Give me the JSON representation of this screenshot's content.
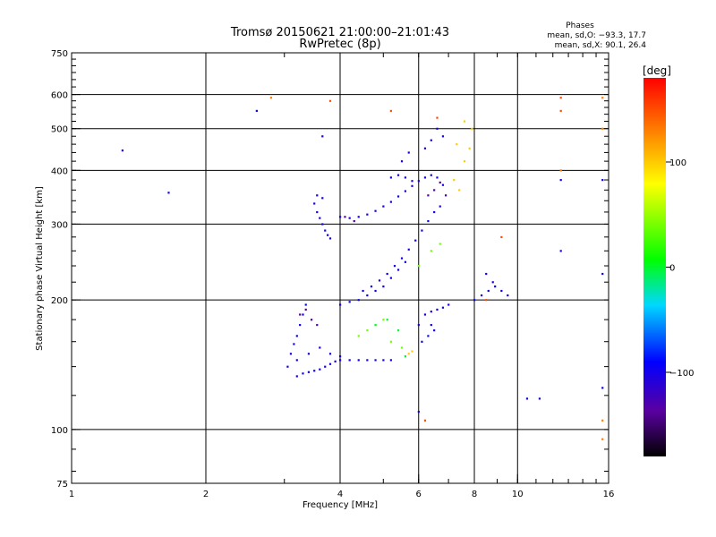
{
  "chart_data": {
    "type": "scatter",
    "title": "Tromsø 20150621 21:00:00–21:01:43",
    "subtitle": "RwPretec (8p)",
    "xlabel": "Frequency [MHz]",
    "ylabel": "Stationary phase Virtual Height [km]",
    "x_scale": "log",
    "y_scale": "log",
    "xlim": [
      1,
      16
    ],
    "ylim": [
      75,
      750
    ],
    "x_ticks": [
      1,
      2,
      4,
      6,
      8,
      10,
      16
    ],
    "y_ticks": [
      75,
      100,
      200,
      300,
      400,
      500,
      600,
      750
    ],
    "x_gridlines": [
      2,
      4,
      6,
      8,
      10
    ],
    "y_gridlines": [
      100,
      200,
      300,
      400,
      500,
      600
    ],
    "grid": true,
    "stats": {
      "header": "Phases",
      "line_o": "mean, sd,O: −93.3, 17.7",
      "line_x": "mean, sd,X:  90.1, 26.4"
    },
    "colorbar": {
      "label": "[deg]",
      "range": [
        -180,
        180
      ],
      "ticks": [
        100,
        0,
        -100
      ],
      "tick_labels": [
        "100",
        "0",
        "−100"
      ]
    },
    "traces": [
      {
        "name": "",
        "phase": -100,
        "points": [
          [
            3.2,
            133
          ],
          [
            3.3,
            135
          ],
          [
            3.4,
            136
          ],
          [
            3.5,
            137
          ],
          [
            3.6,
            138
          ],
          [
            3.7,
            140
          ],
          [
            3.8,
            142
          ],
          [
            3.9,
            144
          ],
          [
            4.0,
            145
          ],
          [
            4.2,
            145
          ],
          [
            4.4,
            145
          ],
          [
            4.6,
            145
          ],
          [
            4.8,
            145
          ],
          [
            5.0,
            145
          ],
          [
            5.2,
            145
          ]
        ]
      },
      {
        "name": "",
        "phase": -100,
        "points": [
          [
            3.05,
            140
          ],
          [
            3.1,
            150
          ],
          [
            3.15,
            158
          ],
          [
            3.2,
            165
          ],
          [
            3.25,
            175
          ],
          [
            3.3,
            185
          ],
          [
            3.35,
            195
          ],
          [
            3.2,
            145
          ],
          [
            3.4,
            150
          ],
          [
            3.6,
            155
          ],
          [
            3.8,
            150
          ],
          [
            4.0,
            148
          ]
        ]
      },
      {
        "name": "",
        "phase": -100,
        "points": [
          [
            3.5,
            335
          ],
          [
            3.55,
            320
          ],
          [
            3.6,
            310
          ],
          [
            3.65,
            300
          ],
          [
            3.7,
            290
          ],
          [
            3.75,
            283
          ],
          [
            3.8,
            278
          ],
          [
            3.55,
            350
          ],
          [
            3.65,
            345
          ]
        ]
      },
      {
        "name": "",
        "phase": -100,
        "points": [
          [
            4.0,
            312
          ],
          [
            4.2,
            310
          ],
          [
            4.4,
            312
          ],
          [
            4.6,
            316
          ],
          [
            4.8,
            322
          ],
          [
            5.0,
            330
          ],
          [
            5.2,
            338
          ],
          [
            5.4,
            348
          ],
          [
            5.6,
            358
          ],
          [
            5.8,
            368
          ],
          [
            6.0,
            378
          ],
          [
            6.2,
            385
          ],
          [
            6.4,
            390
          ],
          [
            6.6,
            385
          ],
          [
            6.8,
            370
          ]
        ]
      },
      {
        "name": "",
        "phase": -100,
        "points": [
          [
            5.2,
            385
          ],
          [
            5.4,
            390
          ],
          [
            5.6,
            385
          ],
          [
            5.8,
            378
          ],
          [
            5.5,
            420
          ],
          [
            5.7,
            440
          ],
          [
            6.2,
            450
          ],
          [
            6.4,
            470
          ],
          [
            6.6,
            500
          ],
          [
            6.8,
            480
          ]
        ]
      },
      {
        "name": "",
        "phase": -100,
        "points": [
          [
            4.5,
            210
          ],
          [
            4.7,
            215
          ],
          [
            4.9,
            222
          ],
          [
            5.1,
            230
          ],
          [
            5.3,
            240
          ],
          [
            5.5,
            250
          ],
          [
            5.7,
            262
          ],
          [
            5.9,
            275
          ],
          [
            6.1,
            290
          ],
          [
            6.3,
            305
          ],
          [
            6.5,
            320
          ],
          [
            6.7,
            330
          ]
        ]
      },
      {
        "name": "",
        "phase": -100,
        "points": [
          [
            4.0,
            195
          ],
          [
            4.2,
            198
          ],
          [
            4.4,
            200
          ],
          [
            4.6,
            205
          ],
          [
            4.8,
            210
          ],
          [
            5.0,
            215
          ],
          [
            5.2,
            225
          ],
          [
            5.4,
            235
          ],
          [
            5.6,
            245
          ]
        ]
      },
      {
        "name": "",
        "phase": -100,
        "points": [
          [
            6.2,
            185
          ],
          [
            6.4,
            188
          ],
          [
            6.6,
            190
          ],
          [
            6.8,
            192
          ],
          [
            7.0,
            195
          ],
          [
            6.1,
            160
          ],
          [
            6.3,
            165
          ],
          [
            6.5,
            170
          ]
        ]
      },
      {
        "name": "",
        "phase": -100,
        "points": [
          [
            8.0,
            200
          ],
          [
            8.3,
            205
          ],
          [
            8.6,
            210
          ],
          [
            8.9,
            215
          ],
          [
            9.2,
            210
          ],
          [
            9.5,
            205
          ],
          [
            8.5,
            230
          ],
          [
            8.8,
            220
          ]
        ]
      },
      {
        "name": "",
        "phase": 100,
        "points": [
          [
            5.6,
            148
          ],
          [
            5.7,
            150
          ],
          [
            5.8,
            152
          ],
          [
            7.2,
            380
          ],
          [
            7.4,
            360
          ],
          [
            7.6,
            420
          ],
          [
            7.8,
            450
          ],
          [
            7.9,
            500
          ],
          [
            7.3,
            460
          ],
          [
            7.6,
            520
          ]
        ]
      },
      {
        "name": "",
        "phase": 40,
        "points": [
          [
            4.4,
            165
          ],
          [
            4.6,
            170
          ],
          [
            4.8,
            175
          ],
          [
            5.0,
            180
          ],
          [
            5.2,
            160
          ],
          [
            5.5,
            155
          ],
          [
            6.0,
            240
          ],
          [
            6.4,
            260
          ],
          [
            6.7,
            270
          ]
        ]
      },
      {
        "name": "",
        "phase": 0,
        "points": [
          [
            4.8,
            175
          ],
          [
            5.1,
            180
          ],
          [
            5.4,
            170
          ],
          [
            5.6,
            148
          ]
        ]
      },
      {
        "name": "",
        "phase": 150,
        "points": [
          [
            3.8,
            580
          ],
          [
            5.2,
            550
          ],
          [
            6.2,
            105
          ],
          [
            9.2,
            280
          ],
          [
            12.5,
            590
          ],
          [
            12.5,
            550
          ],
          [
            6.6,
            530
          ],
          [
            8.5,
            200
          ]
        ]
      },
      {
        "name": "",
        "phase": -100,
        "points": [
          [
            1.3,
            445
          ],
          [
            1.65,
            355
          ],
          [
            2.6,
            550
          ],
          [
            3.65,
            480
          ],
          [
            11.2,
            118
          ],
          [
            10.5,
            118
          ],
          [
            15.5,
            380
          ],
          [
            12.5,
            380
          ],
          [
            15.5,
            125
          ],
          [
            15.5,
            230
          ],
          [
            12.5,
            260
          ],
          [
            6.0,
            110
          ],
          [
            6.0,
            175
          ],
          [
            6.4,
            175
          ]
        ]
      },
      {
        "name": "",
        "phase": 130,
        "points": [
          [
            15.5,
            95
          ],
          [
            15.5,
            105
          ],
          [
            15.5,
            500
          ],
          [
            12.5,
            400
          ],
          [
            2.8,
            590
          ],
          [
            15.5,
            590
          ]
        ]
      },
      {
        "name": "",
        "phase": -140,
        "points": [
          [
            3.25,
            185
          ],
          [
            3.35,
            190
          ],
          [
            3.45,
            180
          ],
          [
            3.55,
            175
          ],
          [
            4.1,
            312
          ],
          [
            4.3,
            305
          ],
          [
            6.3,
            350
          ],
          [
            6.5,
            360
          ],
          [
            6.7,
            375
          ],
          [
            6.9,
            350
          ]
        ]
      }
    ]
  }
}
